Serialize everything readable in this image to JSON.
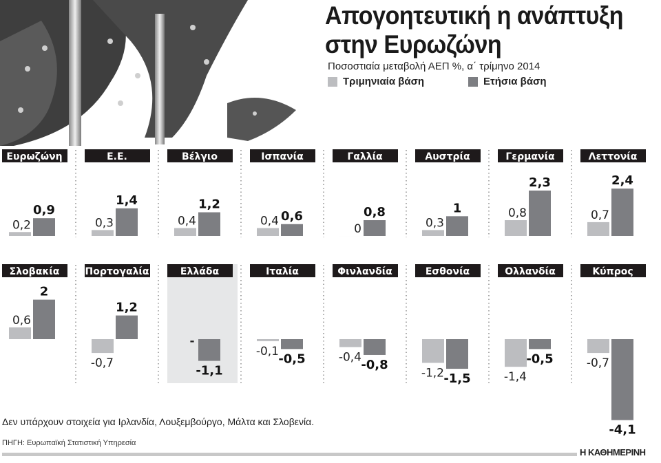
{
  "header": {
    "title_line1": "Απογοητευτική η ανάπτυξη",
    "title_line2": "στην Ευρωζώνη",
    "subtitle": "Ποσοστιαία μεταβολή ΑΕΠ %, α΄ τρίμηνο 2014"
  },
  "legend": {
    "quarterly": "Τριμηνιαία βάση",
    "annual": "Ετήσια βάση"
  },
  "colors": {
    "quarterly": "#bcbdc0",
    "annual": "#7d7e82",
    "label_bg": "#1e1a1b",
    "highlight_bg": "#e6e7e8"
  },
  "chart_data": {
    "type": "bar",
    "series": [
      {
        "name": "Τριμηνιαία βάση",
        "key": "quarterly"
      },
      {
        "name": "Ετήσια βάση",
        "key": "annual"
      }
    ],
    "highlight": "Ελλάδα",
    "grid": false,
    "panels": [
      {
        "country": "Ευρωζώνη",
        "quarterly": 0.2,
        "annual": 0.9,
        "q_label": "0,2",
        "a_label": "0,9"
      },
      {
        "country": "Ε.Ε.",
        "quarterly": 0.3,
        "annual": 1.4,
        "q_label": "0,3",
        "a_label": "1,4"
      },
      {
        "country": "Βέλγιο",
        "quarterly": 0.4,
        "annual": 1.2,
        "q_label": "0,4",
        "a_label": "1,2"
      },
      {
        "country": "Ισπανία",
        "quarterly": 0.4,
        "annual": 0.6,
        "q_label": "0,4",
        "a_label": "0,6"
      },
      {
        "country": "Γαλλία",
        "quarterly": 0,
        "annual": 0.8,
        "q_label": "0",
        "a_label": "0,8"
      },
      {
        "country": "Αυστρία",
        "quarterly": 0.3,
        "annual": 1,
        "q_label": "0,3",
        "a_label": "1"
      },
      {
        "country": "Γερμανία",
        "quarterly": 0.8,
        "annual": 2.3,
        "q_label": "0,8",
        "a_label": "2,3"
      },
      {
        "country": "Λεττονία",
        "quarterly": 0.7,
        "annual": 2.4,
        "q_label": "0,7",
        "a_label": "2,4"
      },
      {
        "country": "Σλοβακία",
        "quarterly": 0.6,
        "annual": 2,
        "q_label": "0,6",
        "a_label": "2"
      },
      {
        "country": "Πορτογαλία",
        "quarterly": -0.7,
        "annual": 1.2,
        "q_label": "-0,7",
        "a_label": "1,2"
      },
      {
        "country": "Ελλάδα",
        "quarterly": null,
        "annual": -1.1,
        "q_label": "-",
        "a_label": "-1,1"
      },
      {
        "country": "Ιταλία",
        "quarterly": -0.1,
        "annual": -0.5,
        "q_label": "-0,1",
        "a_label": "-0,5"
      },
      {
        "country": "Φινλανδία",
        "quarterly": -0.4,
        "annual": -0.8,
        "q_label": "-0,4",
        "a_label": "-0,8"
      },
      {
        "country": "Εσθονία",
        "quarterly": -1.2,
        "annual": -1.5,
        "q_label": "-1,2",
        "a_label": "-1,5"
      },
      {
        "country": "Ολλανδία",
        "quarterly": -1.4,
        "annual": -0.5,
        "q_label": "-1,4",
        "a_label": "-0,5"
      },
      {
        "country": "Κύπρος",
        "quarterly": -0.7,
        "annual": -4.1,
        "q_label": "-0,7",
        "a_label": "-4,1"
      }
    ]
  },
  "footer": {
    "note": "Δεν υπάρχουν στοιχεία για Ιρλανδία, Λουξεμβούργο, Μάλτα και Σλοβενία.",
    "source": "ΠΗΓΗ: Ευρωπαϊκή Στατιστική Υπηρεσία",
    "brand": "Η ΚΑΘΗΜΕΡΙΝΗ"
  }
}
